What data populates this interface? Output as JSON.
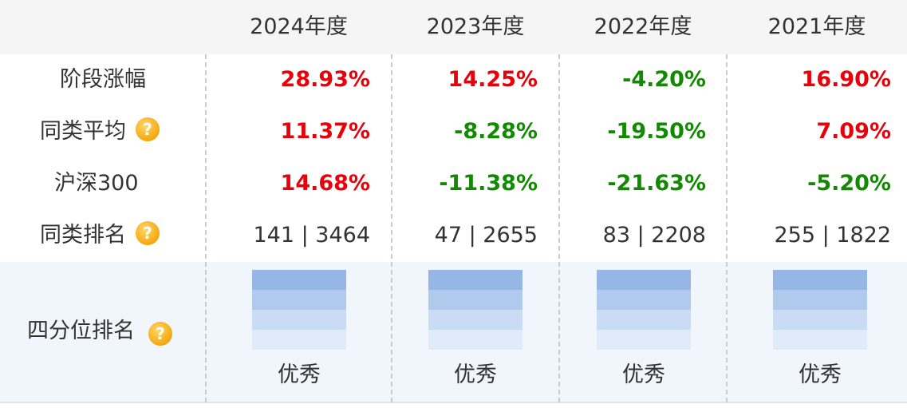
{
  "header": {
    "years": [
      "2024年度",
      "2023年度",
      "2022年度",
      "2021年度"
    ]
  },
  "rows": {
    "period_return": {
      "label": "阶段涨幅",
      "values": [
        "28.93%",
        "14.25%",
        "-4.20%",
        "16.90%"
      ]
    },
    "peer_average": {
      "label": "同类平均",
      "values": [
        "11.37%",
        "-8.28%",
        "-19.50%",
        "7.09%"
      ]
    },
    "csi300": {
      "label": "沪深300",
      "values": [
        "14.68%",
        "-11.38%",
        "-21.63%",
        "-5.20%"
      ]
    },
    "peer_rank": {
      "label": "同类排名",
      "values": [
        "141 | 3464",
        "47 | 2655",
        "83 | 2208",
        "255 | 1822"
      ]
    },
    "quartile_rank": {
      "label": "四分位排名",
      "values": [
        "优秀",
        "优秀",
        "优秀",
        "优秀"
      ]
    }
  },
  "help_icon_glyph": "?",
  "colors": {
    "positive": "#e8000b",
    "negative": "#118a00",
    "header_bg": "#f5f5f5",
    "quartile_bg": "#f0f6fc",
    "help_icon": "#f5a80c"
  },
  "icons": [
    "help-icon"
  ]
}
